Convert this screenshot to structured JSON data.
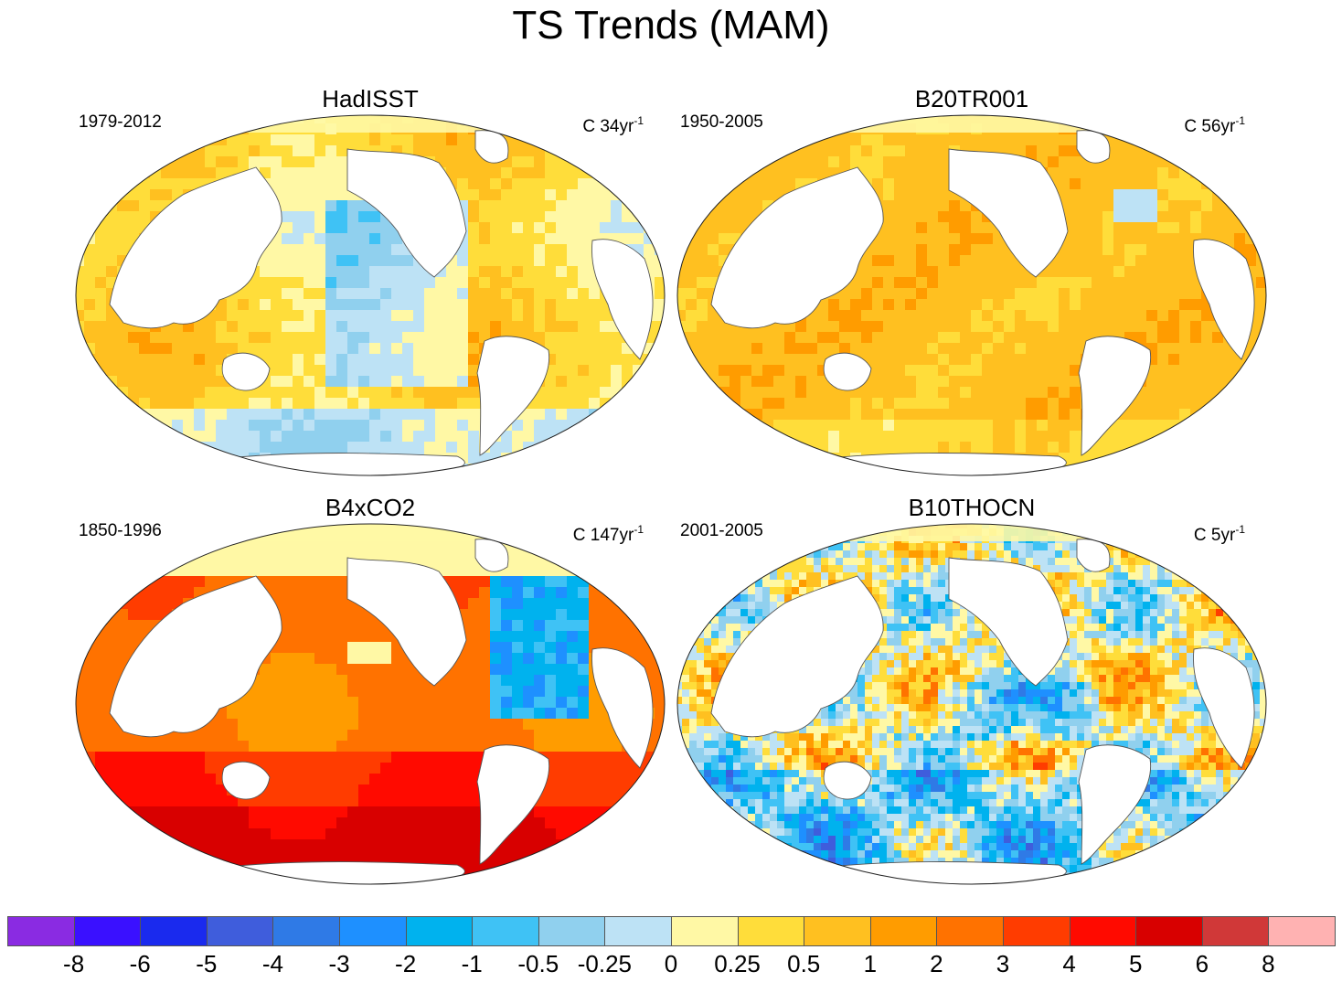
{
  "figure": {
    "title": "TS Trends (MAM)"
  },
  "panels": [
    {
      "name": "HadISST",
      "period": "1979-2012",
      "units_prefix": "C 34yr",
      "units_exp": "-1",
      "style": "mild-mixed"
    },
    {
      "name": "B20TR001",
      "period": "1950-2005",
      "units_prefix": "C 56yr",
      "units_exp": "-1",
      "style": "warm-uniform"
    },
    {
      "name": "B4xCO2",
      "period": "1850-1996",
      "units_prefix": "C 147yr",
      "units_exp": "-1",
      "style": "strong-warm"
    },
    {
      "name": "B10THOCN",
      "period": "2001-2005",
      "units_prefix": "C 5yr",
      "units_exp": "-1",
      "style": "noisy-mixed"
    }
  ],
  "colorbar": {
    "colors": [
      "#8a2be2",
      "#3a10ff",
      "#1a2aee",
      "#3f5ddc",
      "#2f7ae6",
      "#1e90ff",
      "#00b2ee",
      "#3fc2f5",
      "#90d0ee",
      "#bde2f5",
      "#fff8a5",
      "#ffdd3a",
      "#ffc020",
      "#ff9c00",
      "#ff7200",
      "#ff3c00",
      "#ff0a00",
      "#d80000",
      "#d03838",
      "#ffb2b2"
    ],
    "labels": [
      "-8",
      "-6",
      "-5",
      "-4",
      "-3",
      "-2",
      "-1",
      "-0.5",
      "-0.25",
      "0",
      "0.25",
      "0.5",
      "1",
      "2",
      "3",
      "4",
      "5",
      "6",
      "8"
    ]
  }
}
